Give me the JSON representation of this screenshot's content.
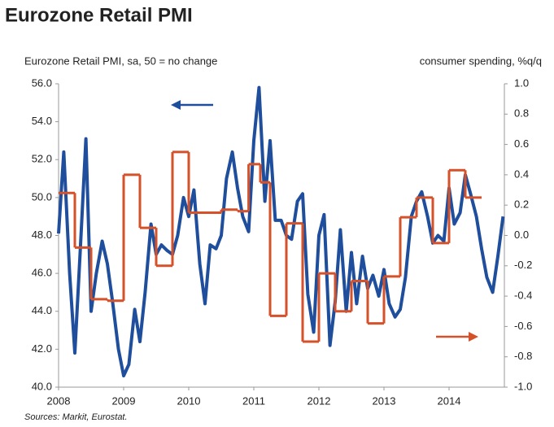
{
  "chart_data": {
    "type": "line",
    "title": "Eurozone Retail PMI",
    "y_label": "Eurozone Retail PMI, sa, 50 = no change",
    "y2_label": "consumer spending, %q/q",
    "source": "Sources: Markit, Eurostat.",
    "xlim": [
      2008,
      2014.85
    ],
    "xticks": [
      2008,
      2009,
      2010,
      2011,
      2012,
      2013,
      2014
    ],
    "ylim": [
      40,
      56
    ],
    "yticks": [
      {
        "value": 40,
        "label": "40.0"
      },
      {
        "value": 42,
        "label": "42.0"
      },
      {
        "value": 44,
        "label": "44.0"
      },
      {
        "value": 46,
        "label": "46.0"
      },
      {
        "value": 48,
        "label": "48.0"
      },
      {
        "value": 50,
        "label": "50.0"
      },
      {
        "value": 52,
        "label": "52.0"
      },
      {
        "value": 54,
        "label": "54.0"
      },
      {
        "value": 56,
        "label": "56.0"
      }
    ],
    "y2lim": [
      -1,
      1
    ],
    "y2ticks": [
      {
        "value": -1,
        "label": "-1.0"
      },
      -0.8,
      -0.6,
      -0.4,
      -0.2,
      {
        "value": 0,
        "label": "0.0"
      },
      0.2,
      0.4,
      0.6,
      0.8,
      {
        "value": 1,
        "label": "1.0"
      }
    ],
    "grid": false,
    "series": [
      {
        "name": "Eurozone Retail PMI",
        "color": "#1f4e9c",
        "axis": "y",
        "x": [
          2008.0,
          2008.08,
          2008.17,
          2008.25,
          2008.33,
          2008.42,
          2008.5,
          2008.58,
          2008.67,
          2008.75,
          2008.83,
          2008.92,
          2009.0,
          2009.08,
          2009.17,
          2009.25,
          2009.33,
          2009.42,
          2009.5,
          2009.58,
          2009.67,
          2009.75,
          2009.83,
          2009.92,
          2010.0,
          2010.08,
          2010.17,
          2010.25,
          2010.33,
          2010.42,
          2010.5,
          2010.58,
          2010.67,
          2010.75,
          2010.83,
          2010.92,
          2011.0,
          2011.08,
          2011.17,
          2011.25,
          2011.33,
          2011.42,
          2011.5,
          2011.58,
          2011.67,
          2011.75,
          2011.83,
          2011.92,
          2012.0,
          2012.08,
          2012.17,
          2012.25,
          2012.33,
          2012.42,
          2012.5,
          2012.58,
          2012.67,
          2012.75,
          2012.83,
          2012.92,
          2013.0,
          2013.08,
          2013.17,
          2013.25,
          2013.33,
          2013.42,
          2013.5,
          2013.58,
          2013.67,
          2013.75,
          2013.83,
          2013.92,
          2014.0,
          2014.08,
          2014.17,
          2014.25,
          2014.33,
          2014.42,
          2014.5,
          2014.58,
          2014.67,
          2014.75,
          2014.83
        ],
        "values": [
          48.1,
          52.4,
          46,
          41.8,
          47,
          53.1,
          44,
          46,
          47.7,
          46.5,
          44.5,
          42,
          40.6,
          41.2,
          44.1,
          42.4,
          45,
          48.6,
          47,
          47.5,
          47.2,
          47,
          48,
          50,
          49,
          50.4,
          46.5,
          44.4,
          47.5,
          47.3,
          48,
          51,
          52.4,
          50.5,
          49,
          48.2,
          53,
          55.8,
          49.8,
          53,
          48.8,
          48.8,
          48,
          47.8,
          49.8,
          50.2,
          44.9,
          42.9,
          48,
          49.1,
          42.2,
          44.5,
          48.3,
          44,
          47.1,
          44.4,
          46.9,
          45.2,
          45.9,
          44.8,
          46.2,
          44.4,
          43.7,
          44.1,
          45.8,
          49,
          49.8,
          50.3,
          49,
          47.6,
          48,
          47.7,
          50.5,
          48.6,
          49.2,
          51.2,
          50.2,
          49,
          47.3,
          45.8,
          45,
          46.9,
          49
        ]
      },
      {
        "name": "consumer spending, %q/q",
        "color": "#d4512a",
        "axis": "y2",
        "step": true,
        "x": [
          2008.0,
          2008.25,
          2008.5,
          2008.75,
          2009.0,
          2009.25,
          2009.5,
          2009.75,
          2010.0,
          2010.25,
          2010.5,
          2010.75,
          2010.92,
          2011.1,
          2011.25,
          2011.5,
          2011.75,
          2012.0,
          2012.25,
          2012.5,
          2012.75,
          2013.0,
          2013.25,
          2013.5,
          2013.75,
          2014.0,
          2014.25
        ],
        "values": [
          0.28,
          -0.08,
          -0.42,
          -0.43,
          0.4,
          0.05,
          -0.2,
          0.55,
          0.15,
          0.15,
          0.17,
          0.16,
          0.47,
          0.35,
          -0.53,
          0.08,
          -0.7,
          -0.25,
          -0.5,
          -0.3,
          -0.58,
          -0.27,
          0.12,
          0.25,
          -0.05,
          0.43,
          0.25
        ]
      }
    ]
  }
}
